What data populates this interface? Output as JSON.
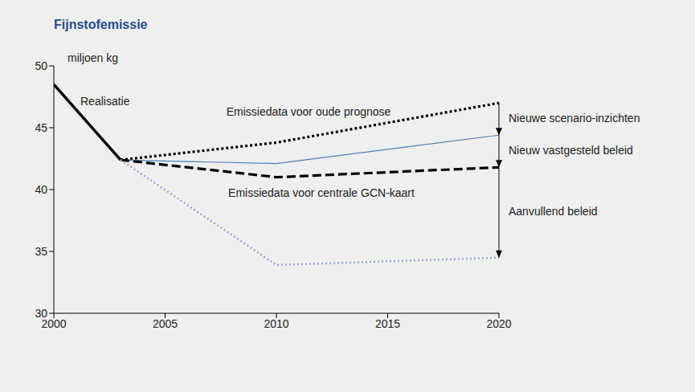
{
  "chart_data": {
    "type": "line",
    "title": "Fijnstofemissie",
    "y_label": "miljoen kg",
    "xlim": [
      2000,
      2020
    ],
    "xticks": [
      2000,
      2005,
      2010,
      2015,
      2020
    ],
    "ylim": [
      30,
      50
    ],
    "yticks": [
      30,
      35,
      40,
      45,
      50
    ],
    "grid": false,
    "series": [
      {
        "name": "Realisatie",
        "color": "#000000",
        "line_style": "solid",
        "x": [
          2000,
          2003
        ],
        "values": [
          48.5,
          42.4
        ]
      },
      {
        "name": "Emissiedata voor oude prognose",
        "color": "#000000",
        "line_style": "dotted",
        "x": [
          2003,
          2010,
          2020
        ],
        "values": [
          42.4,
          43.8,
          47.0
        ]
      },
      {
        "color": "#4f7fb8",
        "line_style": "solid",
        "x": [
          2003,
          2010,
          2020
        ],
        "values": [
          42.4,
          42.1,
          44.4
        ]
      },
      {
        "name": "Emissiedata voor centrale GCN-kaart",
        "color": "#000000",
        "line_style": "dashed",
        "x": [
          2003,
          2010,
          2020
        ],
        "values": [
          42.4,
          41.0,
          41.8
        ]
      },
      {
        "color": "#9aa8d8",
        "line_style": "dotted",
        "x": [
          2003,
          2010,
          2020
        ],
        "values": [
          42.4,
          33.9,
          34.5
        ]
      }
    ],
    "annotations": [
      {
        "text": "Nieuwe scenario-inzichten",
        "x": 2020,
        "from": 47.0,
        "to": 44.4
      },
      {
        "text": "Nieuw vastgesteld beleid",
        "x": 2020,
        "from": 44.4,
        "to": 41.8
      },
      {
        "text": "Aanvullend beleid",
        "x": 2020,
        "from": 41.8,
        "to": 34.5
      }
    ]
  }
}
